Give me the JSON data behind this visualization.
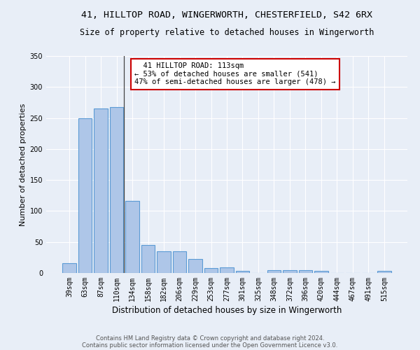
{
  "title_line1": "41, HILLTOP ROAD, WINGERWORTH, CHESTERFIELD, S42 6RX",
  "title_line2": "Size of property relative to detached houses in Wingerworth",
  "xlabel": "Distribution of detached houses by size in Wingerworth",
  "ylabel": "Number of detached properties",
  "footer_line1": "Contains HM Land Registry data © Crown copyright and database right 2024.",
  "footer_line2": "Contains public sector information licensed under the Open Government Licence v3.0.",
  "categories": [
    "39sqm",
    "63sqm",
    "87sqm",
    "110sqm",
    "134sqm",
    "158sqm",
    "182sqm",
    "206sqm",
    "229sqm",
    "253sqm",
    "277sqm",
    "301sqm",
    "325sqm",
    "348sqm",
    "372sqm",
    "396sqm",
    "420sqm",
    "444sqm",
    "467sqm",
    "491sqm",
    "515sqm"
  ],
  "values": [
    16,
    249,
    265,
    268,
    116,
    45,
    35,
    35,
    23,
    8,
    9,
    3,
    0,
    4,
    4,
    5,
    3,
    0,
    0,
    0,
    3
  ],
  "bar_color": "#aec6e8",
  "bar_edge_color": "#5b9bd5",
  "background_color": "#e8eef7",
  "annotation_line1": "  41 HILLTOP ROAD: 113sqm",
  "annotation_line2": "← 53% of detached houses are smaller (541)",
  "annotation_line3": "47% of semi-detached houses are larger (478) →",
  "annotation_box_color": "#ffffff",
  "annotation_box_edge_color": "#cc0000",
  "property_line_x": 3.48,
  "ylim": [
    0,
    350
  ],
  "yticks": [
    0,
    50,
    100,
    150,
    200,
    250,
    300,
    350
  ],
  "grid_color": "#ffffff",
  "title_fontsize": 9.5,
  "subtitle_fontsize": 8.5,
  "ylabel_fontsize": 8,
  "xlabel_fontsize": 8.5,
  "tick_fontsize": 7,
  "annotation_fontsize": 7.5,
  "footer_fontsize": 6
}
